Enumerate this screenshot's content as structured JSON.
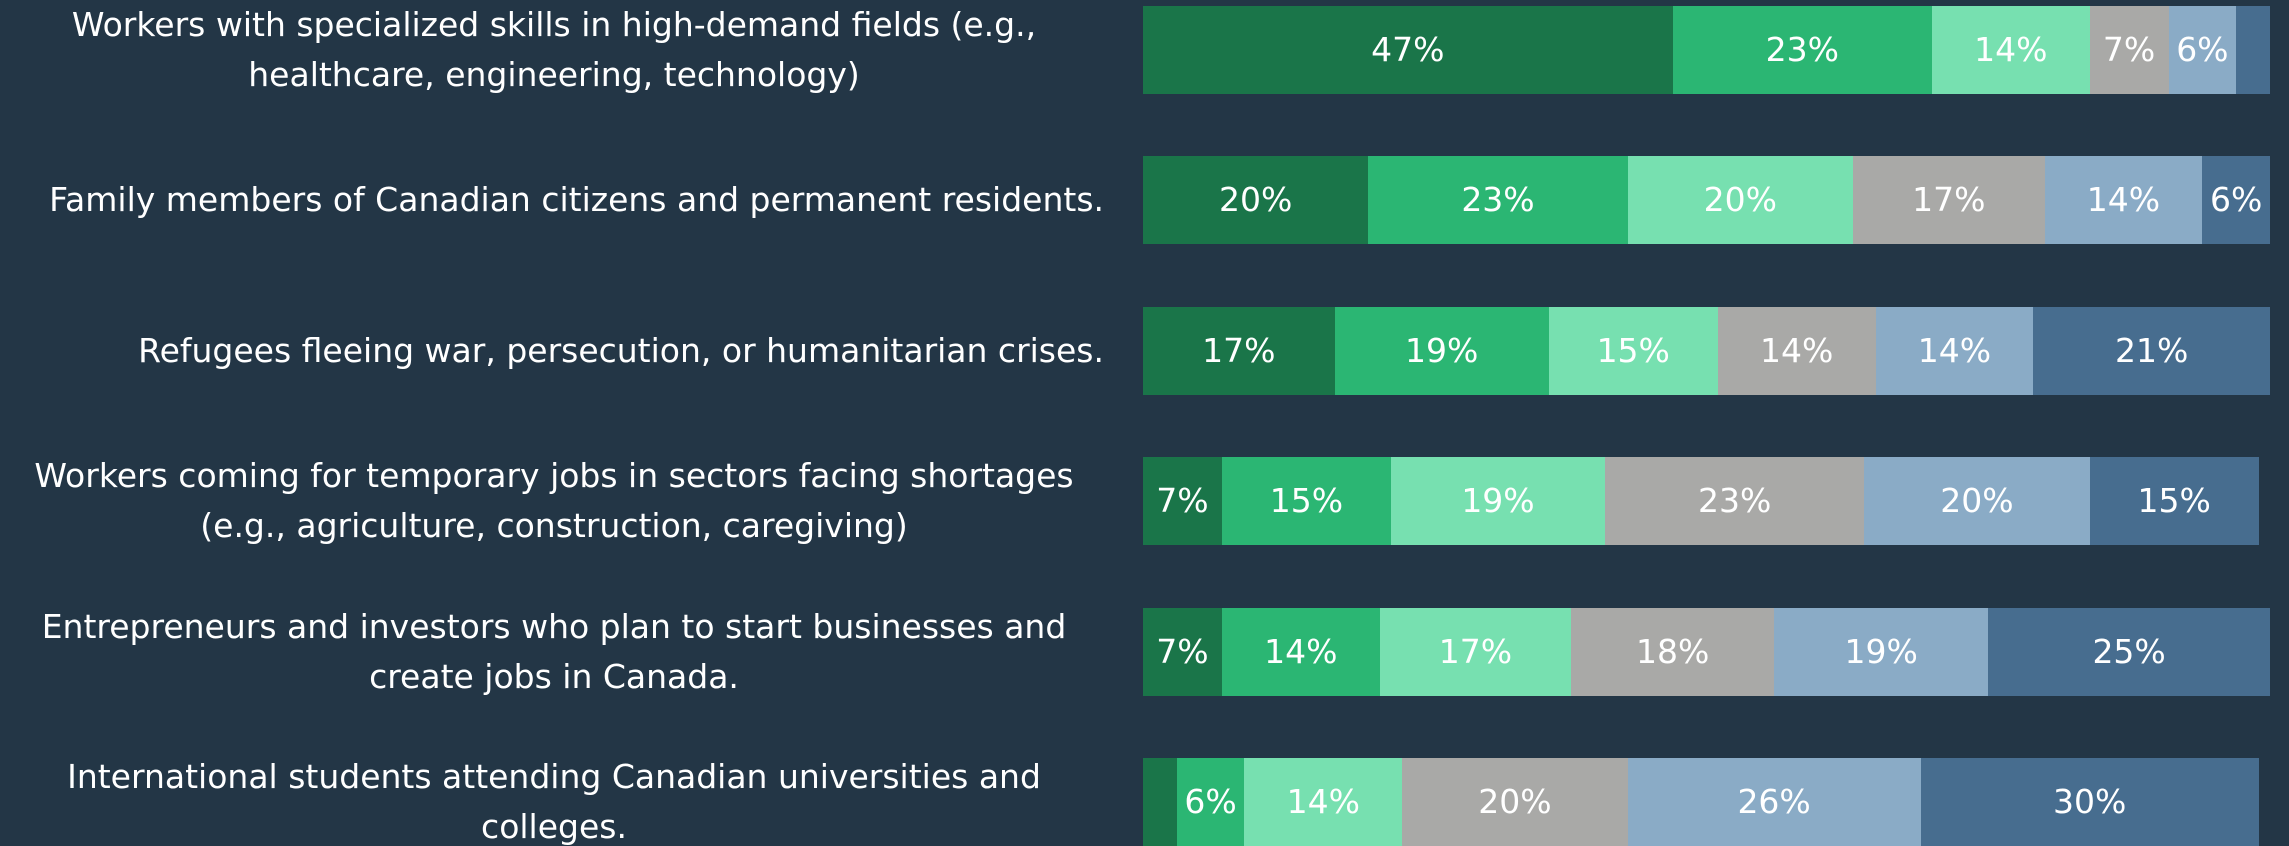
{
  "chart_data": {
    "type": "stacked_bar_horizontal",
    "categories": [
      "Workers with specialized skills in high-demand fields (e.g., healthcare, engineering, technology)",
      "Family members of Canadian citizens and permanent residents.",
      "Refugees fleeing war, persecution, or humanitarian crises.",
      "Workers coming for temporary jobs in sectors facing shortages (e.g., agriculture, construction, caregiving)",
      "Entrepreneurs and investors who plan to start businesses and create jobs in Canada.",
      "International students attending Canadian universities and colleges."
    ],
    "xlim": [
      0,
      100
    ],
    "series": [
      {
        "color": "#1a7549",
        "values": [
          47,
          20,
          17,
          7,
          7,
          3
        ],
        "value_labels": [
          "47%",
          "20%",
          "17%",
          "7%",
          "7%",
          null
        ]
      },
      {
        "color": "#2bb673",
        "values": [
          23,
          23,
          19,
          15,
          14,
          6
        ],
        "value_labels": [
          "23%",
          "23%",
          "19%",
          "15%",
          "14%",
          "6%"
        ]
      },
      {
        "color": "#77e0b0",
        "values": [
          14,
          20,
          15,
          19,
          17,
          14
        ],
        "value_labels": [
          "14%",
          "20%",
          "15%",
          "19%",
          "17%",
          "14%"
        ]
      },
      {
        "color": "#a9a9a7",
        "values": [
          7,
          17,
          14,
          23,
          18,
          20
        ],
        "value_labels": [
          "7%",
          "17%",
          "14%",
          "23%",
          "18%",
          "20%"
        ]
      },
      {
        "color": "#8aabc6",
        "values": [
          6,
          14,
          14,
          20,
          19,
          26
        ],
        "value_labels": [
          "6%",
          "14%",
          "14%",
          "20%",
          "19%",
          "26%"
        ]
      },
      {
        "color": "#476d8f",
        "values": [
          3,
          6,
          21,
          15,
          25,
          30
        ],
        "value_labels": [
          null,
          "6%",
          "21%",
          "15%",
          "25%",
          "30%"
        ]
      }
    ]
  }
}
